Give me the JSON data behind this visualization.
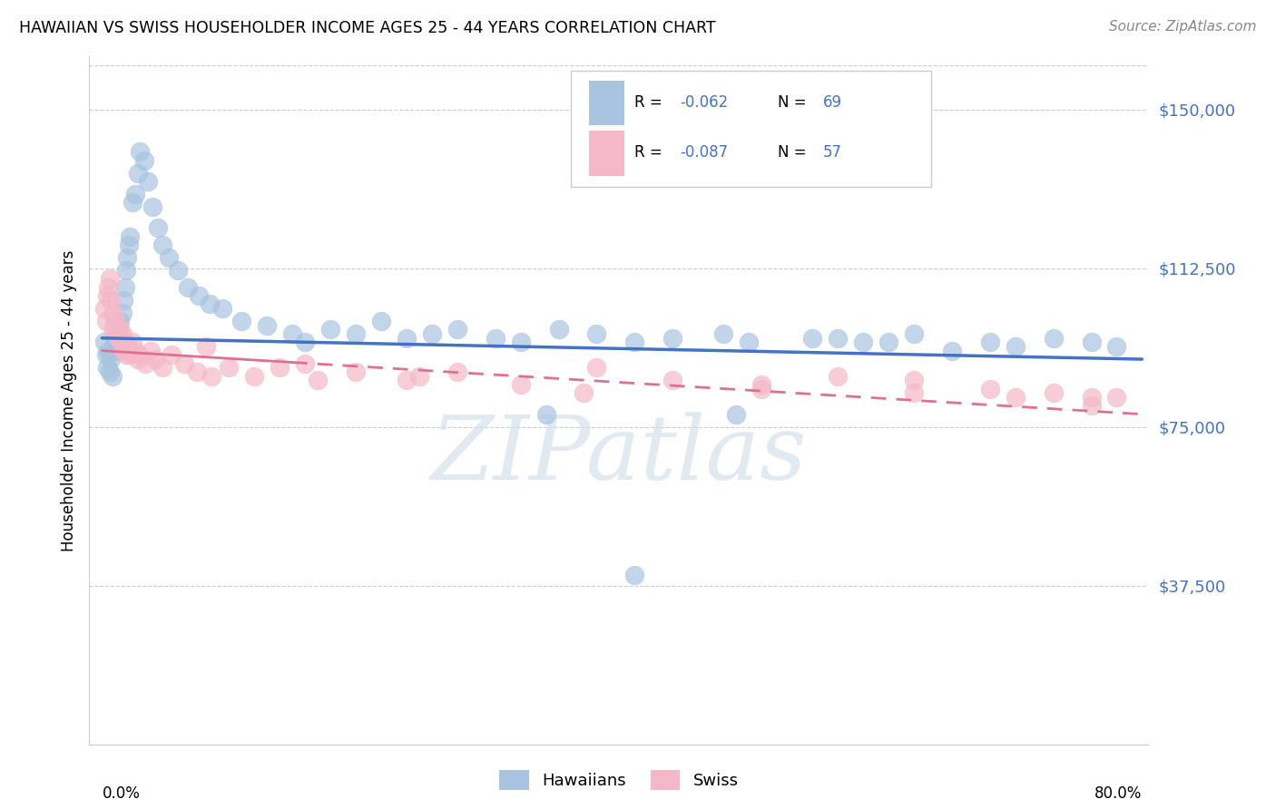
{
  "title": "HAWAIIAN VS SWISS HOUSEHOLDER INCOME AGES 25 - 44 YEARS CORRELATION CHART",
  "source": "Source: ZipAtlas.com",
  "ylabel": "Householder Income Ages 25 - 44 years",
  "ytick_labels": [
    "$37,500",
    "$75,000",
    "$112,500",
    "$150,000"
  ],
  "ytick_values": [
    37500,
    75000,
    112500,
    150000
  ],
  "ymin": 0,
  "ymax": 162500,
  "xmin": 0.0,
  "xmax": 0.82,
  "hawaiian_color": "#a8c4e0",
  "swiss_color": "#f4b8c8",
  "line_blue": "#4472c4",
  "line_pink": "#e07090",
  "watermark": "ZIPatlas",
  "hawaiian_x": [
    0.002,
    0.003,
    0.004,
    0.005,
    0.006,
    0.007,
    0.008,
    0.009,
    0.01,
    0.011,
    0.012,
    0.013,
    0.014,
    0.015,
    0.016,
    0.017,
    0.018,
    0.019,
    0.02,
    0.021,
    0.022,
    0.024,
    0.026,
    0.028,
    0.03,
    0.033,
    0.036,
    0.04,
    0.044,
    0.048,
    0.053,
    0.06,
    0.068,
    0.076,
    0.085,
    0.095,
    0.11,
    0.13,
    0.15,
    0.18,
    0.22,
    0.26,
    0.31,
    0.36,
    0.42,
    0.49,
    0.56,
    0.62,
    0.67,
    0.72,
    0.75,
    0.78,
    0.8,
    0.16,
    0.2,
    0.24,
    0.28,
    0.33,
    0.39,
    0.45,
    0.51,
    0.58,
    0.64,
    0.7,
    0.35,
    0.42,
    0.5,
    0.6
  ],
  "hawaiian_y": [
    95000,
    92000,
    89000,
    93000,
    88000,
    91000,
    87000,
    94000,
    96000,
    98000,
    93000,
    97000,
    100000,
    95000,
    102000,
    105000,
    108000,
    112000,
    115000,
    118000,
    120000,
    128000,
    130000,
    135000,
    140000,
    138000,
    133000,
    127000,
    122000,
    118000,
    115000,
    112000,
    108000,
    106000,
    104000,
    103000,
    100000,
    99000,
    97000,
    98000,
    100000,
    97000,
    96000,
    98000,
    95000,
    97000,
    96000,
    95000,
    93000,
    94000,
    96000,
    95000,
    94000,
    95000,
    97000,
    96000,
    98000,
    95000,
    97000,
    96000,
    95000,
    96000,
    97000,
    95000,
    78000,
    40000,
    78000,
    95000
  ],
  "swiss_x": [
    0.002,
    0.003,
    0.004,
    0.005,
    0.006,
    0.007,
    0.008,
    0.009,
    0.01,
    0.011,
    0.012,
    0.013,
    0.014,
    0.015,
    0.016,
    0.017,
    0.018,
    0.019,
    0.02,
    0.022,
    0.024,
    0.026,
    0.028,
    0.03,
    0.034,
    0.038,
    0.042,
    0.048,
    0.055,
    0.065,
    0.075,
    0.086,
    0.1,
    0.12,
    0.14,
    0.17,
    0.2,
    0.24,
    0.28,
    0.33,
    0.39,
    0.45,
    0.52,
    0.58,
    0.64,
    0.7,
    0.75,
    0.78,
    0.8,
    0.082,
    0.16,
    0.25,
    0.38,
    0.52,
    0.64,
    0.72,
    0.78
  ],
  "swiss_y": [
    103000,
    100000,
    106000,
    108000,
    110000,
    105000,
    98000,
    102000,
    100000,
    97000,
    99000,
    96000,
    98000,
    95000,
    97000,
    93000,
    95000,
    92000,
    94000,
    92000,
    95000,
    93000,
    91000,
    92000,
    90000,
    93000,
    91000,
    89000,
    92000,
    90000,
    88000,
    87000,
    89000,
    87000,
    89000,
    86000,
    88000,
    86000,
    88000,
    85000,
    89000,
    86000,
    84000,
    87000,
    86000,
    84000,
    83000,
    82000,
    82000,
    94000,
    90000,
    87000,
    83000,
    85000,
    83000,
    82000,
    80000
  ]
}
